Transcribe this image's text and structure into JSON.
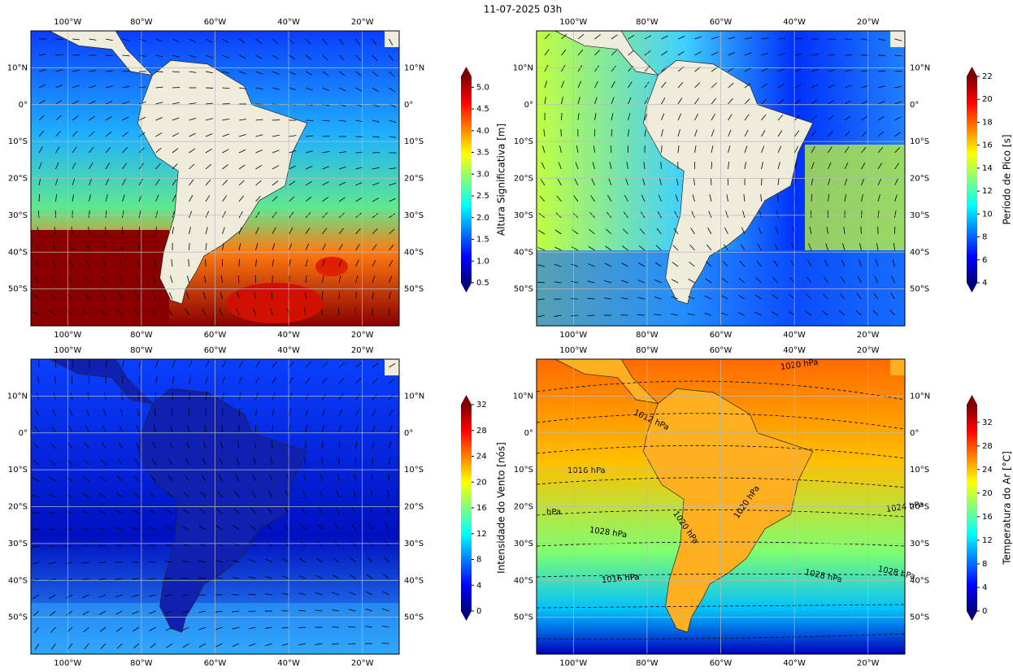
{
  "title": "11-07-2025 03h",
  "extent": {
    "lon": [
      -110,
      -10
    ],
    "lat": [
      -60,
      20
    ]
  },
  "lon_ticks": [
    {
      "value": -100,
      "label": "100°W"
    },
    {
      "value": -80,
      "label": "80°W"
    },
    {
      "value": -60,
      "label": "60°W"
    },
    {
      "value": -40,
      "label": "40°W"
    },
    {
      "value": -20,
      "label": "20°W"
    }
  ],
  "lat_ticks": [
    {
      "value": 10,
      "label": "10°N"
    },
    {
      "value": 0,
      "label": "0°"
    },
    {
      "value": -10,
      "label": "10°S"
    },
    {
      "value": -20,
      "label": "20°S"
    },
    {
      "value": -30,
      "label": "30°S"
    },
    {
      "value": -40,
      "label": "40°S"
    },
    {
      "value": -50,
      "label": "50°S"
    }
  ],
  "grid": true,
  "panels": [
    {
      "field": "wave-height",
      "colorbar": {
        "label": "Altura Significativa [m]",
        "colormap": "jet",
        "lim": [
          0.5,
          5.25
        ],
        "ticks": [
          {
            "value": 0.5,
            "label": "0.5"
          },
          {
            "value": 1,
            "label": "1.0"
          },
          {
            "value": 1.5,
            "label": "1.5"
          },
          {
            "value": 2,
            "label": "2.0"
          },
          {
            "value": 2.5,
            "label": "2.5"
          },
          {
            "value": 3,
            "label": "3.0"
          },
          {
            "value": 3.5,
            "label": "3.5"
          },
          {
            "value": 4,
            "label": "4.0"
          },
          {
            "value": 4.5,
            "label": "4.5"
          },
          {
            "value": 5,
            "label": "5.0"
          }
        ]
      }
    },
    {
      "field": "peak-period",
      "colorbar": {
        "label": "Período de Pico [s]",
        "colormap": "jet",
        "lim": [
          4,
          22
        ],
        "ticks": [
          4,
          6,
          8,
          10,
          12,
          14,
          16,
          18,
          20,
          22
        ]
      }
    },
    {
      "field": "wind-speed",
      "colorbar": {
        "label": "Intensidade do Vento [nós]",
        "colormap": "jet",
        "lim": [
          0,
          32
        ],
        "ticks": [
          0,
          4,
          8,
          12,
          16,
          20,
          24,
          28,
          32
        ]
      }
    },
    {
      "field": "air-temperature",
      "colorbar": {
        "label": "Temperatura do Ar [°C]",
        "colormap": "jet",
        "lim": [
          0,
          35
        ],
        "ticks": [
          0,
          4,
          8,
          12,
          16,
          20,
          24,
          28,
          32
        ]
      },
      "isobar_labels": [
        "1020 hPa",
        "1012 hPa",
        "1016 hPa",
        "1016 hPa",
        "hPa",
        "1020 hPa",
        "1020 hPa",
        "1028 hPa",
        "1024 hPa",
        "1028 hPa",
        "1016 hPa",
        "1028 hPa"
      ]
    }
  ]
}
